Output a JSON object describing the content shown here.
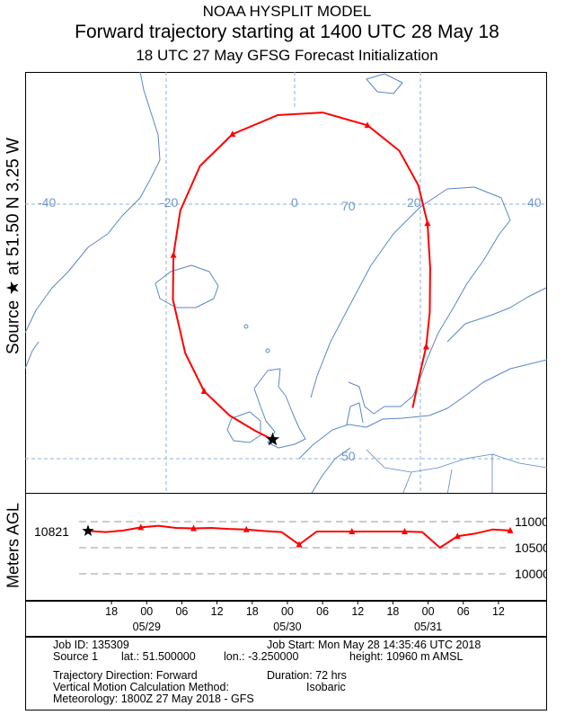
{
  "header": {
    "line1": "NOAA HYSPLIT MODEL",
    "line2": "Forward trajectory starting at 1400 UTC 28 May 18",
    "line3": "18 UTC 27 May    GFSG  Forecast Initialization"
  },
  "side_label": "Source ★  at   51.50 N   3.25 W",
  "height_panel": {
    "ylabel": "Meters AGL",
    "source_height_label": "10821",
    "yticks": [
      "11000",
      "10500",
      "10000"
    ]
  },
  "info": {
    "job_id": "Job ID: 135309",
    "job_start": "Job Start: Mon May 28 14:35:46 UTC 2018",
    "source": "Source 1",
    "lat": "lat.: 51.500000",
    "lon": "lon.: -3.250000",
    "height": "height: 10960 m AMSL",
    "direction": "Trajectory Direction: Forward",
    "duration": "Duration: 72 hrs",
    "vmethod": "Vertical Motion Calculation Method:",
    "vmethod_value": "Isobaric",
    "meteorology": "Meteorology: 1800Z 27 May 2018 - GFS"
  },
  "colors": {
    "trajectory": "#ff0000",
    "coast": "#5b86c4",
    "grid": "#8fb0d6",
    "gridlabel": "#6f98cc"
  },
  "map_grid_labels": {
    "lon": [
      "-40",
      "-20",
      "0",
      "20",
      "40"
    ],
    "lat": [
      "70",
      "50"
    ]
  },
  "chart_data": [
    {
      "type": "line",
      "title": "Forward trajectory starting at 1400 UTC 28 May 18",
      "kind": "trajectory map",
      "source": {
        "lat": 51.5,
        "lon": -3.25
      },
      "series": [
        {
          "x": [
            -3.25,
            -6,
            -10,
            -14,
            -17,
            -19,
            -19,
            -18,
            -15,
            -10,
            -3,
            4,
            11,
            16,
            19,
            20.5,
            21,
            21,
            20.5,
            19.5,
            18.5
          ],
          "y": [
            51.5,
            52.2,
            53.4,
            55.3,
            58.3,
            62.5,
            66,
            69.5,
            73,
            75.5,
            77,
            77.2,
            76.2,
            74.2,
            71.5,
            68.5,
            65,
            61.5,
            58.8,
            56.5,
            54
          ]
        }
      ]
    },
    {
      "type": "line",
      "kind": "height profile",
      "ylabel": "Meters AGL",
      "ylim": [
        10000,
        11000
      ],
      "yticks": [
        11000,
        10500,
        10000
      ],
      "xticks": [
        "18",
        "00",
        "06",
        "12",
        "18",
        "00",
        "06",
        "12",
        "18",
        "00",
        "06",
        "12"
      ],
      "date_labels": [
        "05/29",
        "05/30",
        "05/31"
      ],
      "series": [
        {
          "x": [
            0,
            3,
            6,
            9,
            12,
            15,
            18,
            21,
            24,
            27,
            30,
            33,
            36,
            39,
            42,
            45,
            48,
            51,
            54,
            57,
            60,
            63,
            66,
            69,
            72
          ],
          "y": [
            10821,
            10800,
            10830,
            10890,
            10920,
            10880,
            10870,
            10880,
            10860,
            10850,
            10820,
            10800,
            10560,
            10810,
            10810,
            10810,
            10810,
            10810,
            10810,
            10800,
            10500,
            10720,
            10770,
            10850,
            10830
          ]
        }
      ]
    }
  ]
}
